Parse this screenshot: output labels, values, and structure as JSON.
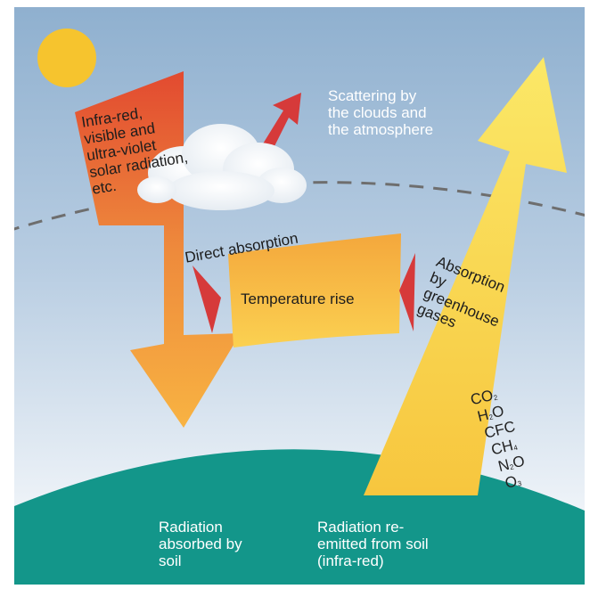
{
  "labels": {
    "incoming": "Infra-red,\nvisible and\nultra-violet\nsolar radiation,\netc.",
    "scattering": "Scattering by\nthe clouds and\nthe atmosphere",
    "direct_absorption": "Direct absorption",
    "temperature_rise": "Temperature rise",
    "greenhouse_absorption": "Absorption\nby\ngreenhouse\ngases",
    "absorbed_by_soil": "Radiation\nabsorbed by\nsoil",
    "reemitted": "Radiation re-\nemitted from soil\n(infra-red)"
  },
  "gases": [
    {
      "base": "CO",
      "sub": "2"
    },
    {
      "base": "H",
      "sub": "2",
      "tail": "O"
    },
    {
      "base": "CFC"
    },
    {
      "base": "CH",
      "sub": "4"
    },
    {
      "base": "N",
      "sub": "2",
      "tail": "O"
    },
    {
      "base": "O",
      "sub": "3"
    }
  ],
  "colors": {
    "sky_top": "#8fb0cf",
    "sky_bottom": "#ffffff",
    "sun": "#f6c42e",
    "soil": "#13968a",
    "incoming_arrow_top": "#e24a30",
    "incoming_arrow_bottom": "#f8b342",
    "reemitted_arrow": "#fbe25d",
    "red_arrow": "#d63a3a",
    "atmosphere_line": "#6e6e6e"
  }
}
